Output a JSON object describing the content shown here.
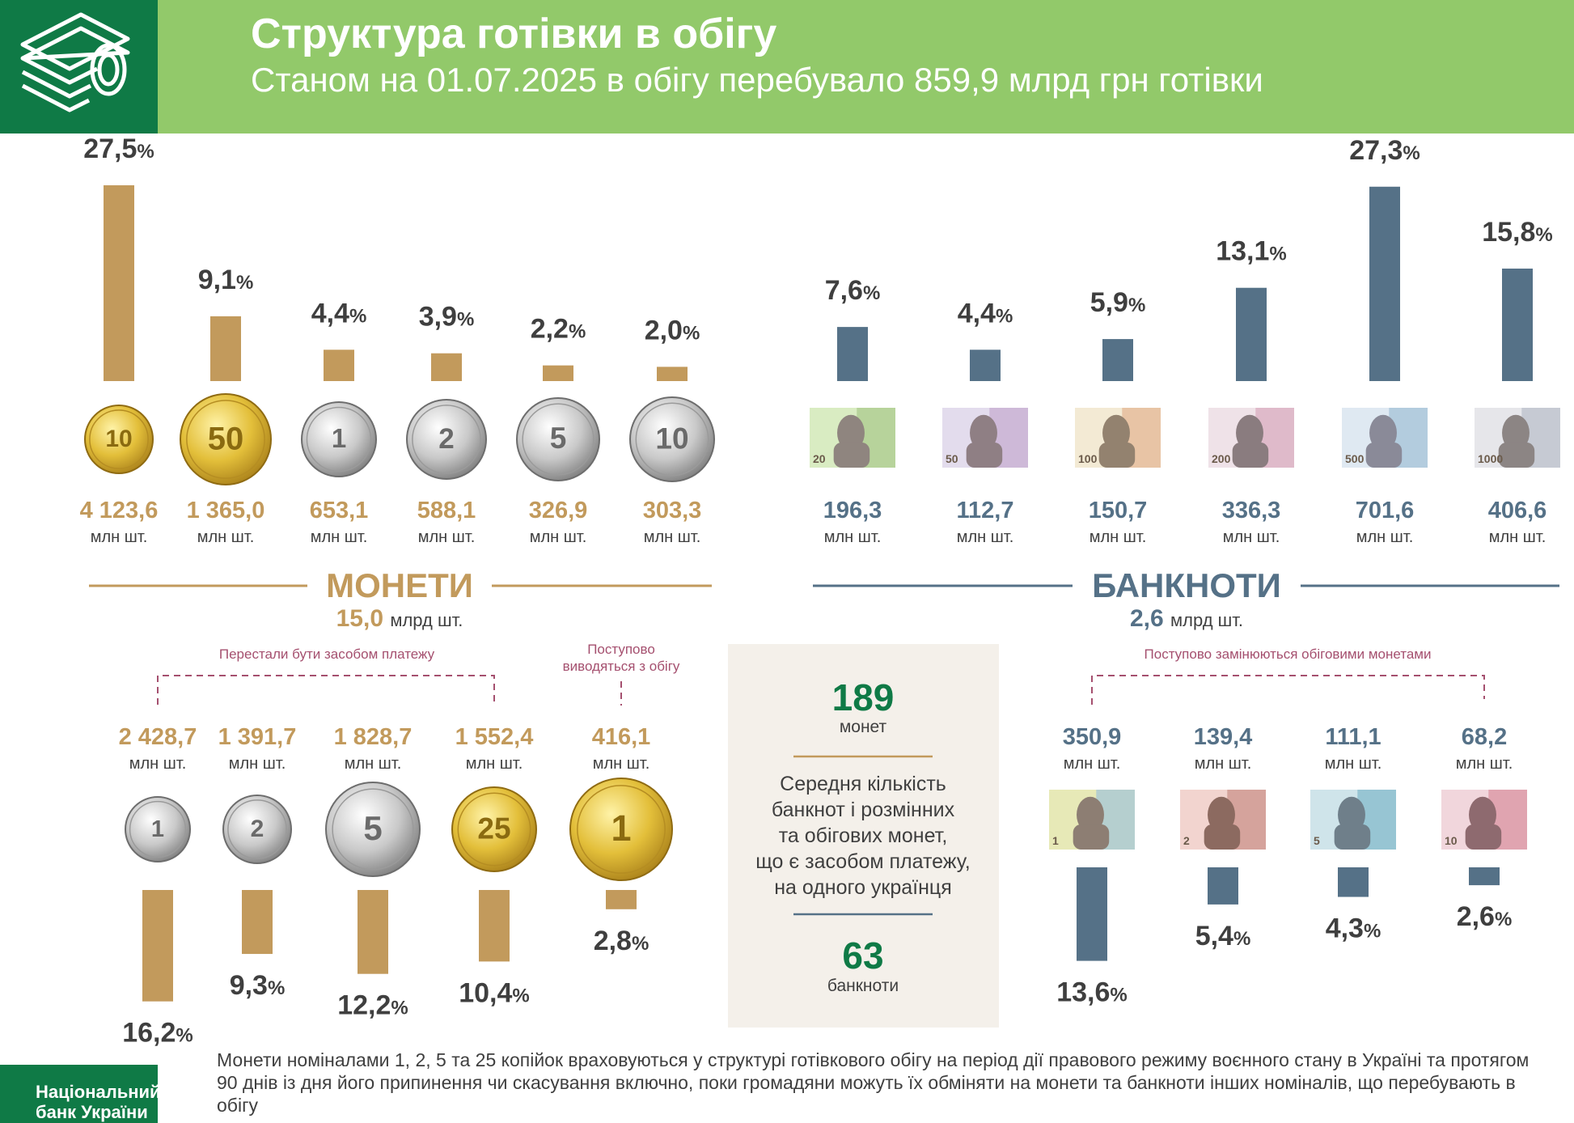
{
  "header": {
    "title": "Структура готівки в обігу",
    "subtitle": "Станом на 01.07.2025  в обігу перебувало 859,9 млрд грн готівки"
  },
  "colors": {
    "coin": "#c29a5c",
    "note": "#557187",
    "header_green": "#92c96a",
    "logo_green": "#0f7a46",
    "accent_text": "#0f7a46",
    "bracket": "#a5506f"
  },
  "units": {
    "pieces": "млн шт."
  },
  "sections": {
    "coins": {
      "label": "МОНЕТИ",
      "total_value": "15,0",
      "total_unit": "млрд шт."
    },
    "notes": {
      "label": "БАНКНОТИ",
      "total_value": "2,6",
      "total_unit": "млрд шт."
    }
  },
  "brackets": {
    "coins_not_payment": "Перестали бути засобом платежу",
    "coins_withdrawn": "Поступово\nвиводяться з обігу",
    "notes_replaced": "Поступово замінюються обіговими монетами"
  },
  "infobox": {
    "coins_value": "189",
    "coins_label": "монет",
    "text": "Середня кількість\nбанкнот і розмінних\nта обігових монет,\nщо є засобом платежу,\nна одного українця",
    "notes_value": "63",
    "notes_label": "банкноти"
  },
  "footnote": "Монети номіналами 1, 2, 5 та 25 копійок враховуються у структурі готівкового обігу на період дії правового режиму воєнного стану в Україні та протягом 90 днів із дня його припинення чи скасування включно, поки громадяни можуть їх обміняти на  монети та  банкноти інших номіналів, що перебувають в обігу",
  "logo": {
    "line1": "Національний",
    "line2": "банк України"
  },
  "chart_data": [
    {
      "type": "bar",
      "group": "coins_in_use",
      "categories": [
        "10 копійок",
        "50 копійок",
        "1 гривня",
        "2 гривні",
        "5 гривень",
        "10 гривень"
      ],
      "coin_labels": [
        "10",
        "50",
        "1",
        "2",
        "5",
        "10"
      ],
      "values": [
        27.5,
        9.1,
        4.4,
        3.9,
        2.2,
        2.0
      ],
      "pct_labels": [
        "27,5",
        "9,1",
        "4,4",
        "3,9",
        "2,2",
        "2,0"
      ],
      "counts": [
        "4 123,6",
        "1 365,0",
        "653,1",
        "588,1",
        "326,9",
        "303,3"
      ],
      "coin_colors": [
        "gold",
        "gold",
        "silver",
        "silver",
        "silver",
        "silver"
      ]
    },
    {
      "type": "bar",
      "group": "notes_in_use",
      "categories": [
        "20 гривень",
        "50 гривень",
        "100 гривень",
        "200 гривень",
        "500 гривень",
        "1000 гривень"
      ],
      "note_labels": [
        "20",
        "50",
        "100",
        "200",
        "500",
        "1000"
      ],
      "values": [
        7.6,
        4.4,
        5.9,
        13.1,
        27.3,
        15.8
      ],
      "pct_labels": [
        "7,6",
        "4,4",
        "5,9",
        "13,1",
        "27,3",
        "15,8"
      ],
      "counts": [
        "196,3",
        "112,7",
        "150,7",
        "336,3",
        "701,6",
        "406,6"
      ]
    },
    {
      "type": "bar",
      "group": "coins_old",
      "categories": [
        "1 копійка",
        "2 копійки",
        "5 копійок",
        "25 копійок",
        "1 гривня"
      ],
      "coin_labels": [
        "1",
        "2",
        "5",
        "25",
        "1"
      ],
      "values": [
        16.2,
        9.3,
        12.2,
        10.4,
        2.8
      ],
      "pct_labels": [
        "16,2",
        "9,3",
        "12,2",
        "10,4",
        "2,8"
      ],
      "counts": [
        "2 428,7",
        "1 391,7",
        "1 828,7",
        "1 552,4",
        "416,1"
      ],
      "coin_colors": [
        "silver",
        "silver",
        "silver",
        "gold",
        "gold"
      ]
    },
    {
      "type": "bar",
      "group": "notes_old",
      "categories": [
        "1 гривня",
        "2 гривні",
        "5 гривень",
        "10 гривень"
      ],
      "note_labels": [
        "1",
        "2",
        "5",
        "10"
      ],
      "values": [
        13.6,
        5.4,
        4.3,
        2.6
      ],
      "pct_labels": [
        "13,6",
        "5,4",
        "4,3",
        "2,6"
      ],
      "counts": [
        "350,9",
        "139,4",
        "111,1",
        "68,2"
      ]
    }
  ]
}
